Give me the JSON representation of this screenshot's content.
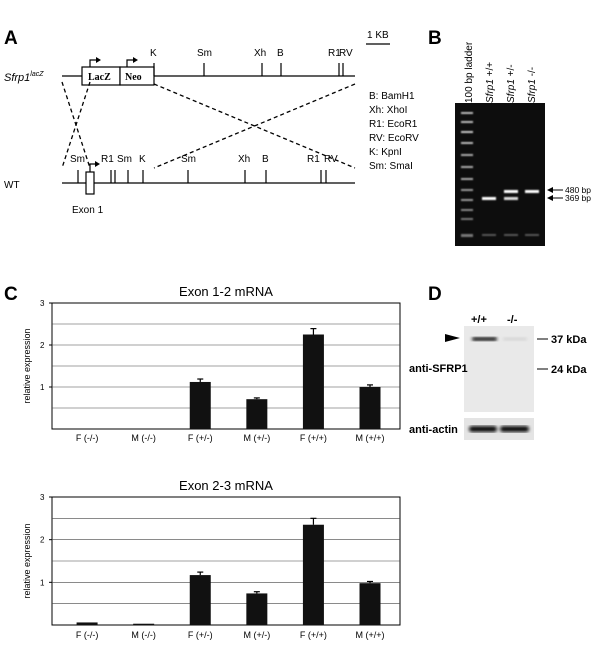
{
  "panel_a": {
    "letter": "A",
    "allele_name": "Sfrp1",
    "allele_sup": "lacZ",
    "scale": "1 KB",
    "wt_label": "WT",
    "lacz": "LacZ",
    "neo": "Neo",
    "exon_label": "Exon 1",
    "targeted_sites": [
      {
        "name": "K"
      },
      {
        "name": "Sm"
      },
      {
        "name": "Xh"
      },
      {
        "name": "B"
      },
      {
        "name": "R1"
      },
      {
        "name": "RV"
      }
    ],
    "wt_sites": [
      {
        "name": "Sm"
      },
      {
        "name": "R1"
      },
      {
        "name": "Sm"
      },
      {
        "name": "K"
      },
      {
        "name": "Sm"
      },
      {
        "name": "Xh"
      },
      {
        "name": "B"
      },
      {
        "name": "R1"
      },
      {
        "name": "RV"
      }
    ],
    "legend": [
      "B: BamH1",
      "Xh: XhoI",
      "R1: EcoR1",
      "RV: EcoRV",
      "K: KpnI",
      "Sm: SmaI"
    ]
  },
  "panel_b": {
    "letter": "B",
    "lanes": [
      {
        "prefix": "100 bp ladder",
        "italic": "",
        "suffix": ""
      },
      {
        "prefix": "",
        "italic": "Sfrp1",
        "suffix": " +/+"
      },
      {
        "prefix": "",
        "italic": "Sfrp1",
        "suffix": " +/-"
      },
      {
        "prefix": "",
        "italic": "Sfrp1",
        "suffix": " -/-"
      }
    ],
    "bands": [
      "480 bp",
      "369 bp"
    ]
  },
  "panel_c": {
    "letter": "C",
    "chart_data": [
      {
        "type": "bar",
        "title": "Exon 1-2 mRNA",
        "ylabel": "relative expression",
        "xlabel": "",
        "ylim": [
          0,
          3
        ],
        "yticks": [
          "1",
          "2",
          "3"
        ],
        "categories": [
          "F (-/-)",
          "M (-/-)",
          "F (+/-)",
          "M (+/-)",
          "F (+/+)",
          "M (+/+)"
        ],
        "values": [
          0.0,
          0.0,
          1.12,
          0.71,
          2.25,
          1.0
        ],
        "errors": [
          0.0,
          0.0,
          0.07,
          0.03,
          0.14,
          0.05
        ]
      },
      {
        "type": "bar",
        "title": "Exon 2-3 mRNA",
        "ylabel": "relative expression",
        "xlabel": "",
        "ylim": [
          0,
          3
        ],
        "yticks": [
          "1",
          "2",
          "3"
        ],
        "categories": [
          "F (-/-)",
          "M (-/-)",
          "F (+/-)",
          "M (+/-)",
          "F (+/+)",
          "M (+/+)"
        ],
        "values": [
          0.06,
          0.03,
          1.17,
          0.74,
          2.35,
          0.98
        ],
        "errors": [
          0.0,
          0.0,
          0.07,
          0.04,
          0.15,
          0.04
        ]
      }
    ]
  },
  "panel_d": {
    "letter": "D",
    "genotypes": [
      "+/+",
      "-/-"
    ],
    "markers": [
      "37 kDa",
      "24 kDa"
    ],
    "antibody_1": "anti-SFRP1",
    "antibody_2": "anti-actin"
  },
  "colors": {
    "ink": "#000000",
    "gel": "#0d0d0d",
    "band": "#ffffff",
    "blot_bg": "#e9e9e9",
    "bar": "#111111"
  }
}
